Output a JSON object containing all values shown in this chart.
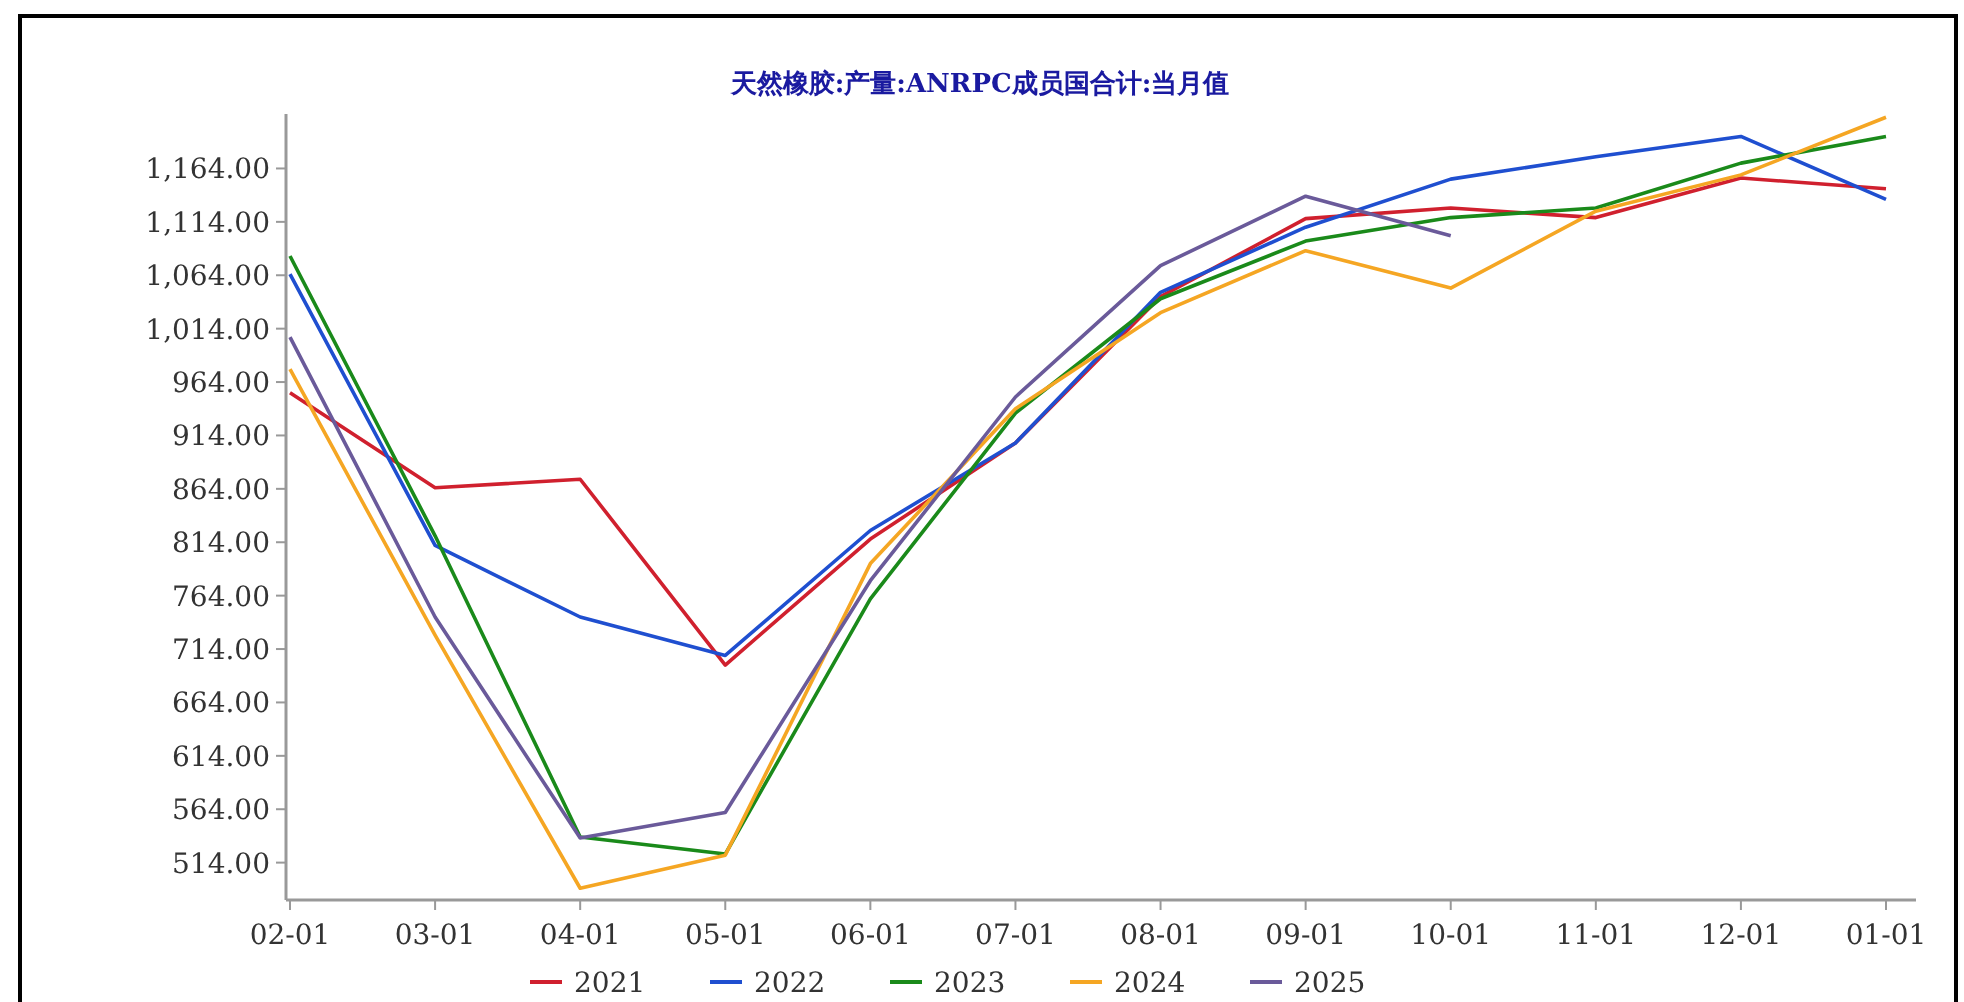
{
  "chart_data": {
    "type": "line",
    "title": "天然橡胶:产量:ANRPC成员国合计:当月值",
    "categories": [
      "02-01",
      "03-01",
      "04-01",
      "05-01",
      "06-01",
      "07-01",
      "08-01",
      "09-01",
      "10-01",
      "11-01",
      "12-01",
      "01-01"
    ],
    "series": [
      {
        "name": "2021",
        "color": "#d0202e",
        "values": [
          954,
          865,
          873,
          699,
          817,
          907,
          1044,
          1117,
          1127,
          1118,
          1155,
          1145
        ]
      },
      {
        "name": "2022",
        "color": "#1f4fd0",
        "values": [
          1065,
          811,
          744,
          708,
          825,
          907,
          1048,
          1109,
          1154,
          1175,
          1194,
          1135
        ]
      },
      {
        "name": "2023",
        "color": "#1a8a1a",
        "values": [
          1082,
          820,
          538,
          522,
          761,
          935,
          1042,
          1096,
          1118,
          1127,
          1169,
          1194
        ]
      },
      {
        "name": "2024",
        "color": "#f5a623",
        "values": [
          976,
          727,
          490,
          521,
          794,
          939,
          1029,
          1087,
          1052,
          1124,
          1158,
          1212
        ]
      },
      {
        "name": "2025",
        "color": "#6a5a9a",
        "values": [
          1006,
          744,
          537,
          561,
          778,
          950,
          1073,
          1138,
          1101,
          null,
          null,
          null
        ]
      }
    ],
    "ylim": [
      479,
      1215
    ],
    "yticks": [
      {
        "value": 514,
        "label": "514.00"
      },
      {
        "value": 564,
        "label": "564.00"
      },
      {
        "value": 614,
        "label": "614.00"
      },
      {
        "value": 664,
        "label": "664.00"
      },
      {
        "value": 714,
        "label": "714.00"
      },
      {
        "value": 764,
        "label": "764.00"
      },
      {
        "value": 814,
        "label": "814.00"
      },
      {
        "value": 864,
        "label": "864.00"
      },
      {
        "value": 914,
        "label": "914.00"
      },
      {
        "value": 964,
        "label": "964.00"
      },
      {
        "value": 1014,
        "label": "1,014.00"
      },
      {
        "value": 1064,
        "label": "1,064.00"
      },
      {
        "value": 1114,
        "label": "1,114.00"
      },
      {
        "value": 1164,
        "label": "1,164.00"
      }
    ],
    "grid": false,
    "legend": "bottom",
    "marker": "none",
    "line_style": "solid"
  }
}
